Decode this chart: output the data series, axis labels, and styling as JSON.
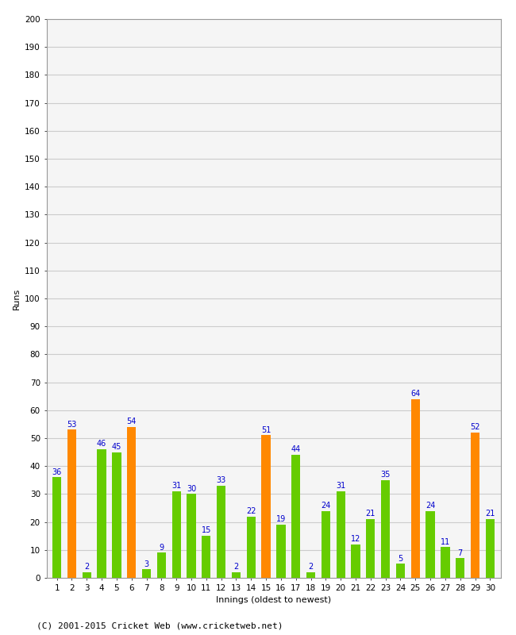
{
  "title": "",
  "xlabel": "Innings (oldest to newest)",
  "ylabel": "Runs",
  "footer": "(C) 2001-2015 Cricket Web (www.cricketweb.net)",
  "ylim": [
    0,
    200
  ],
  "yticks": [
    0,
    10,
    20,
    30,
    40,
    50,
    60,
    70,
    80,
    90,
    100,
    110,
    120,
    130,
    140,
    150,
    160,
    170,
    180,
    190,
    200
  ],
  "innings": [
    1,
    2,
    3,
    4,
    5,
    6,
    7,
    8,
    9,
    10,
    11,
    12,
    13,
    14,
    15,
    16,
    17,
    18,
    19,
    20,
    21,
    22,
    23,
    24,
    25,
    26,
    27,
    28,
    29,
    30
  ],
  "values": [
    36,
    53,
    2,
    46,
    45,
    54,
    3,
    9,
    31,
    30,
    15,
    33,
    2,
    22,
    51,
    19,
    44,
    2,
    24,
    31,
    12,
    21,
    35,
    5,
    64,
    24,
    11,
    7,
    52,
    21
  ],
  "colors": [
    "#66cc00",
    "#ff8800",
    "#66cc00",
    "#66cc00",
    "#66cc00",
    "#ff8800",
    "#66cc00",
    "#66cc00",
    "#66cc00",
    "#66cc00",
    "#66cc00",
    "#66cc00",
    "#66cc00",
    "#66cc00",
    "#ff8800",
    "#66cc00",
    "#66cc00",
    "#66cc00",
    "#66cc00",
    "#66cc00",
    "#66cc00",
    "#66cc00",
    "#66cc00",
    "#66cc00",
    "#ff8800",
    "#66cc00",
    "#66cc00",
    "#66cc00",
    "#ff8800",
    "#66cc00"
  ],
  "label_color": "#0000cc",
  "background_color": "#ffffff",
  "plot_bg_color": "#f5f5f5",
  "grid_color": "#cccccc",
  "bar_width": 0.6,
  "tick_fontsize": 7.5,
  "label_fontsize": 7,
  "axis_label_fontsize": 8,
  "footer_fontsize": 8
}
